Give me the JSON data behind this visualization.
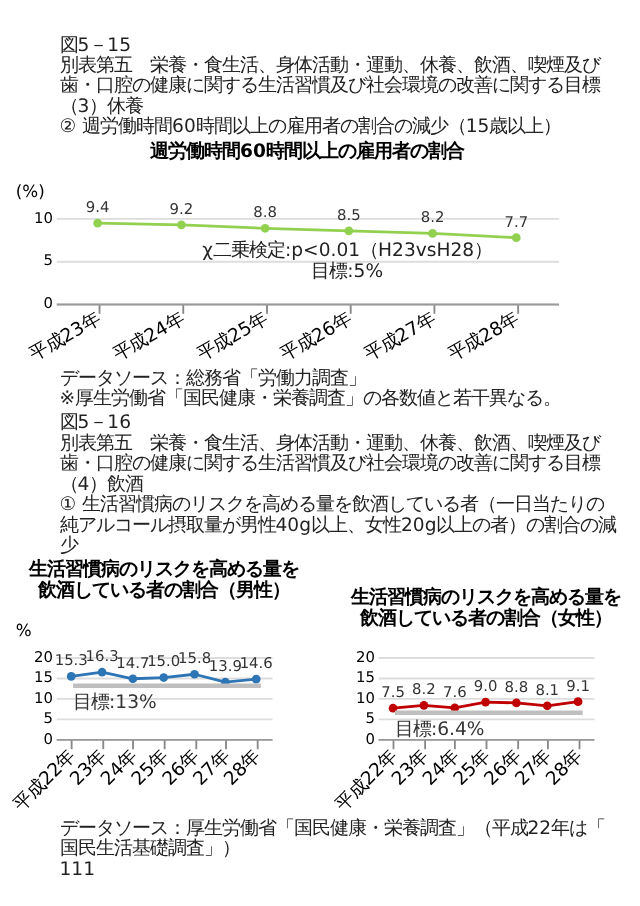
{
  "chart_data": [
    {
      "type": "other",
      "annotations": [
        "図5－15",
        "別表第五　栄養・食生活、身体活動・運動、休養、飲酒、喫煙及び歯・口腔の健康に関する生活習慣及び社会環境の改善に関する目標",
        "（3）休養",
        "② 週労働時間60時間以上の雇用者の割合の減少（15歳以上）"
      ]
    },
    {
      "type": "line",
      "title": "週労働時間60時間以上の雇用者の割合",
      "ylabel": "(%)",
      "categories": [
        "平成23年",
        "平成24年",
        "平成25年",
        "平成26年",
        "平成27年",
        "平成28年"
      ],
      "series": [
        {
          "color": "#92d050",
          "values": [
            9.4,
            9.2,
            8.8,
            8.5,
            8.2,
            7.7
          ]
        }
      ],
      "ylim": [
        0,
        10
      ],
      "yticks": [
        0,
        5,
        10
      ],
      "grid": "y",
      "marker": "circle",
      "data_labels": true,
      "annotations": [
        "χ二乗検定:p<0.01（H23vsH28）",
        "目標:5%"
      ]
    },
    {
      "type": "other",
      "annotations": [
        "データソース：総務省「労働力調査」",
        "※厚生労働省「国民健康・栄養調査」の各数値と若干異なる。"
      ]
    },
    {
      "type": "other",
      "annotations": [
        "図5－16",
        "別表第五　栄養・食生活、身体活動・運動、休養、飲酒、喫煙及び歯・口腔の健康に関する生活習慣及び社会環境の改善に関する目標",
        "（4）飲酒",
        "① 生活習慣病のリスクを高める量を飲酒している者（一日当たりの純アルコール摂取量が男性40g以上、女性20g以上の者）の割合の減少"
      ]
    },
    {
      "type": "line",
      "title": "生活習慣病のリスクを高める量を飲酒している者の割合（男性）",
      "ylabel": "%",
      "categories": [
        "平成22年",
        "23年",
        "24年",
        "25年",
        "26年",
        "27年",
        "28年"
      ],
      "series": [
        {
          "color": "#2e75b6",
          "values": [
            15.3,
            16.3,
            14.7,
            15.0,
            15.8,
            13.9,
            14.6
          ],
          "value_labels": [
            "15.3",
            "16.3",
            "14.7",
            "15.0",
            "15.8",
            "13.9",
            "14.6"
          ]
        }
      ],
      "ylim": [
        0,
        20
      ],
      "yticks": [
        0,
        5,
        10,
        15,
        20
      ],
      "grid": "y",
      "marker": "circle",
      "ref_lines": [
        {
          "axis": "y",
          "value": 13,
          "label": "目標:13%",
          "color": "#bfbfbf"
        }
      ]
    },
    {
      "type": "line",
      "title": "生活習慣病のリスクを高める量を飲酒している者の割合（女性）",
      "categories": [
        "平成22年",
        "23年",
        "24年",
        "25年",
        "26年",
        "27年",
        "28年"
      ],
      "series": [
        {
          "color": "#c00000",
          "values": [
            7.5,
            8.2,
            7.6,
            9.0,
            8.8,
            8.1,
            9.1
          ],
          "value_labels": [
            "7.5",
            "8.2",
            "7.6",
            "9.0",
            "8.8",
            "8.1",
            "9.1"
          ]
        }
      ],
      "ylim": [
        0,
        20
      ],
      "yticks": [
        0,
        5,
        10,
        15,
        20
      ],
      "grid": "y",
      "marker": "circle",
      "ref_lines": [
        {
          "axis": "y",
          "value": 6.4,
          "label": "目標:6.4%",
          "color": "#bfbfbf"
        }
      ]
    },
    {
      "type": "other",
      "annotations": [
        "データソース：厚生労働省「国民健康・栄養調査」（平成22年は「国民生活基礎調査」）",
        "111"
      ]
    }
  ]
}
